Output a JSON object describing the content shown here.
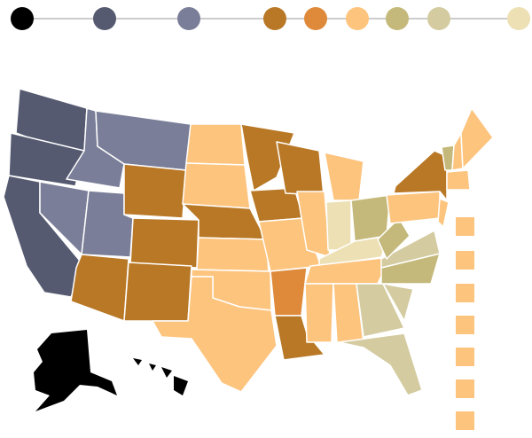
{
  "scale": {
    "colors": [
      "#000000",
      "#555a70",
      "#7a7e98",
      "#b87826",
      "#de8a3a",
      "#fdc47e",
      "#c4b97a",
      "#d4cba0",
      "#ede0b4"
    ]
  }
}
